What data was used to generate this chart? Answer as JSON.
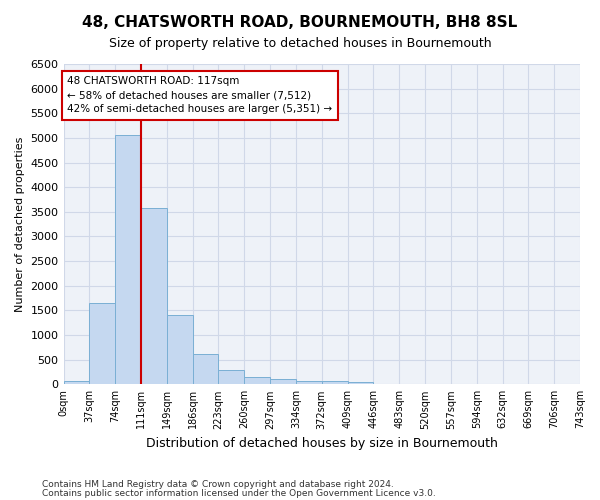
{
  "title": "48, CHATSWORTH ROAD, BOURNEMOUTH, BH8 8SL",
  "subtitle": "Size of property relative to detached houses in Bournemouth",
  "xlabel": "Distribution of detached houses by size in Bournemouth",
  "ylabel": "Number of detached properties",
  "footer1": "Contains HM Land Registry data © Crown copyright and database right 2024.",
  "footer2": "Contains public sector information licensed under the Open Government Licence v3.0.",
  "bar_values": [
    75,
    1640,
    5060,
    3580,
    1400,
    620,
    290,
    150,
    100,
    70,
    60,
    50,
    0,
    0,
    0,
    0,
    0,
    0,
    0,
    0
  ],
  "bar_labels": [
    "0sqm",
    "37sqm",
    "74sqm",
    "111sqm",
    "149sqm",
    "186sqm",
    "223sqm",
    "260sqm",
    "297sqm",
    "334sqm",
    "372sqm",
    "409sqm",
    "446sqm",
    "483sqm",
    "520sqm",
    "557sqm",
    "594sqm",
    "632sqm",
    "669sqm",
    "706sqm",
    "743sqm"
  ],
  "ylim": [
    0,
    6500
  ],
  "yticks": [
    0,
    500,
    1000,
    1500,
    2000,
    2500,
    3000,
    3500,
    4000,
    4500,
    5000,
    5500,
    6000,
    6500
  ],
  "bar_color": "#c5d8f0",
  "bar_edge_color": "#7aafd4",
  "property_bin_index": 3,
  "annotation_title": "48 CHATSWORTH ROAD: 117sqm",
  "annotation_line1": "← 58% of detached houses are smaller (7,512)",
  "annotation_line2": "42% of semi-detached houses are larger (5,351) →",
  "annotation_box_color": "#ffffff",
  "annotation_box_edge": "#cc0000",
  "vline_color": "#cc0000",
  "grid_color": "#d0d8e8",
  "bg_color": "#eef2f8"
}
